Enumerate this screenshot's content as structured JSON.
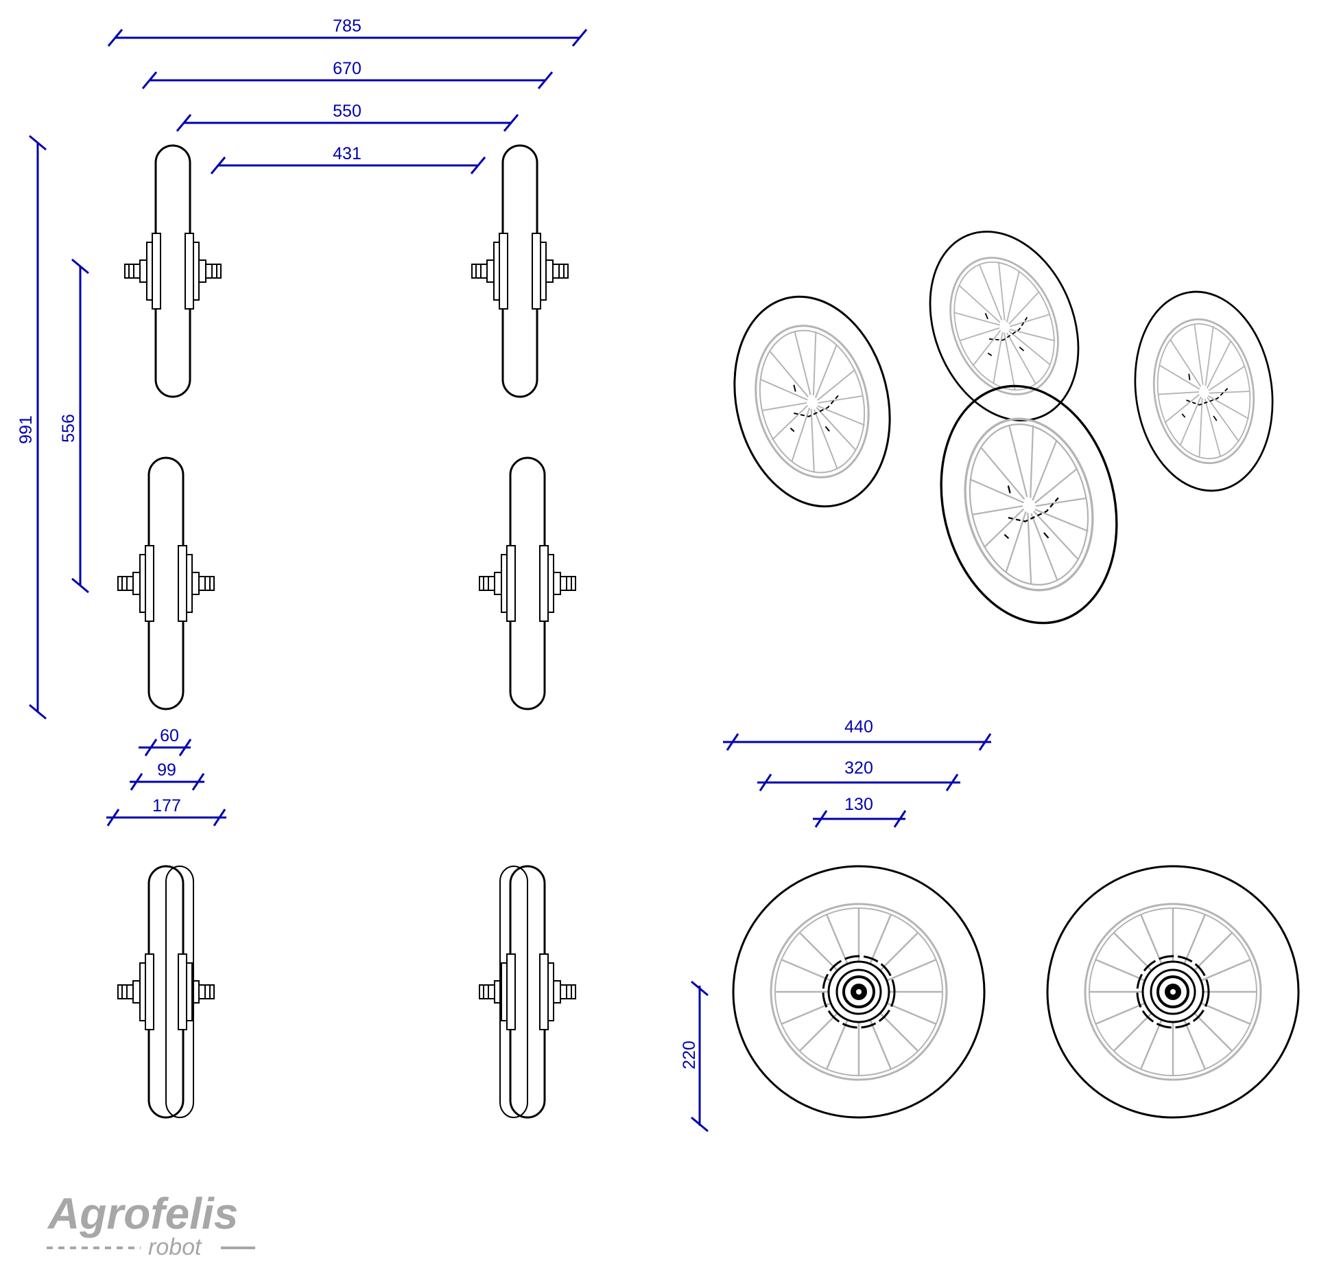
{
  "dimensions": {
    "top_view": {
      "w785": "785",
      "w670": "670",
      "w550": "550",
      "w431": "431",
      "h991": "991",
      "h556": "556",
      "w60": "60",
      "w99": "99",
      "w177": "177"
    },
    "side_view": {
      "d440": "440",
      "d320": "320",
      "d130": "130",
      "h220": "220"
    }
  },
  "logo": {
    "name": "Agrofelis",
    "tagline": "robot"
  },
  "colors": {
    "dimension": "#0000b0",
    "outline": "#000000",
    "spokes": "#b4b4b4",
    "logo": "#a7a7a7"
  }
}
